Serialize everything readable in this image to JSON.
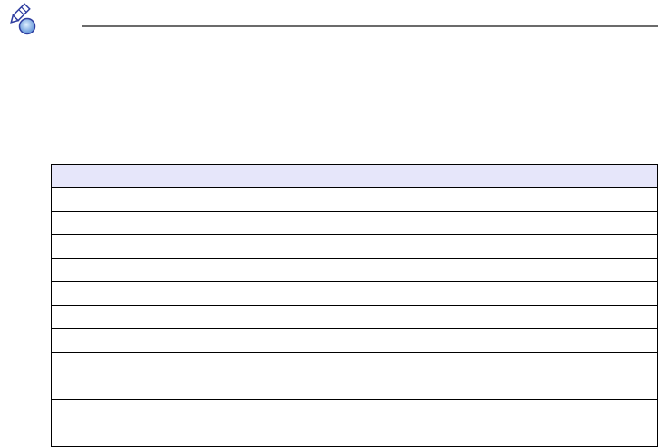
{
  "icon": "note-pencil-icon",
  "colors": {
    "header_fill": "#e6e6fa",
    "rule": "#6b6b6b",
    "icon_blue": "#2f3ea0"
  },
  "table": {
    "headers": [
      "",
      ""
    ],
    "rows": [
      [
        "",
        ""
      ],
      [
        "",
        ""
      ],
      [
        "",
        ""
      ],
      [
        "",
        ""
      ],
      [
        "",
        ""
      ],
      [
        "",
        ""
      ],
      [
        "",
        ""
      ],
      [
        "",
        ""
      ],
      [
        "",
        ""
      ],
      [
        "",
        ""
      ],
      [
        "",
        ""
      ]
    ]
  }
}
